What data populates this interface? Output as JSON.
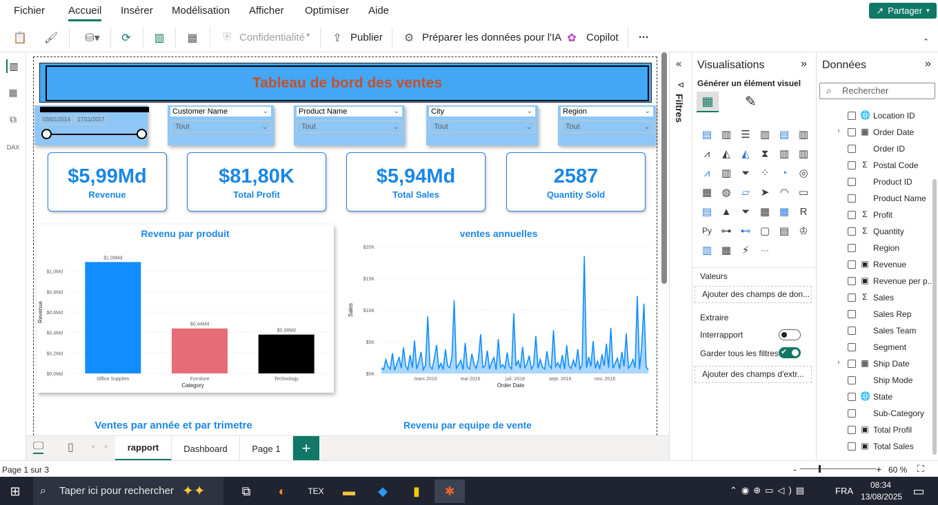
{
  "menu": {
    "items": [
      "Fichier",
      "Accueil",
      "Insérer",
      "Modélisation",
      "Afficher",
      "Optimiser",
      "Aide"
    ],
    "active": "Accueil",
    "share_label": "Partager"
  },
  "ribbon": {
    "confidentiality": "Confidentialité",
    "publish": "Publier",
    "prepare_ai": "Préparer les données pour l'IA",
    "copilot": "Copilot",
    "more": "···"
  },
  "report": {
    "title": "Tableau de bord des ventes",
    "date_slicer": {
      "start": "03/01/2014",
      "end": "17/11/2017"
    },
    "slicers": [
      {
        "header": "Customer Name",
        "value": "Tout"
      },
      {
        "header": "Product Name",
        "value": "Tout"
      },
      {
        "header": "City",
        "value": "Tout"
      },
      {
        "header": "Region",
        "value": "Tout"
      }
    ],
    "kpis": [
      {
        "value": "$5,99Md",
        "label": "Revenue"
      },
      {
        "value": "$81,80K",
        "label": "Total Profit"
      },
      {
        "value": "$5,94Md",
        "label": "Total Sales"
      },
      {
        "value": "2587",
        "label": "Quantity Sold"
      }
    ],
    "bottom_titles": [
      "Ventes par année et par trimetre",
      "Revenu par equipe de vente"
    ]
  },
  "chart_data": [
    {
      "type": "bar",
      "title": "Revenu par produit",
      "xlabel": "Category",
      "ylabel": "Revenue",
      "categories": [
        "Office Supplies",
        "Furniture",
        "Technology"
      ],
      "values": [
        1.09,
        0.44,
        0.38
      ],
      "data_labels": [
        "$1,09Md",
        "$0,44Md",
        "$0,38Md"
      ],
      "bar_colors": [
        "#118dff",
        "#e66c77",
        "#000000"
      ],
      "y_ticks": [
        "$0,0Md",
        "$0,2Md",
        "$0,4Md",
        "$0,6Md",
        "$0,8Md",
        "$1,0Md"
      ],
      "ylim": [
        0,
        1.2
      ],
      "grid": true
    },
    {
      "type": "area",
      "title": "ventes annuelles",
      "xlabel": "Order Date",
      "ylabel": "Sales",
      "x_ticks": [
        "mars 2016",
        "mai 2016",
        "juil. 2016",
        "sept. 2016",
        "nov. 2016"
      ],
      "y_ticks": [
        "$0K",
        "$5K",
        "$10K",
        "$15K",
        "$20K"
      ],
      "ylim": [
        0,
        20000
      ],
      "color": "#118dff",
      "values": [
        900,
        600,
        2200,
        1100,
        700,
        3200,
        500,
        1500,
        2600,
        800,
        4100,
        1200,
        600,
        2900,
        900,
        5200,
        700,
        1800,
        3400,
        600,
        1300,
        9000,
        1100,
        700,
        2400,
        4500,
        800,
        1600,
        600,
        3800,
        1200,
        900,
        2700,
        11500,
        800,
        1400,
        2100,
        600,
        4800,
        1000,
        700,
        3100,
        1500,
        800,
        2300,
        6200,
        900,
        1200,
        3600,
        700,
        1800,
        2500,
        600,
        5400,
        1000,
        1400,
        800,
        3300,
        1100,
        700,
        9500,
        1200,
        2000,
        800,
        4200,
        900,
        1500,
        2800,
        700,
        1300,
        5900,
        800,
        2200,
        1000,
        700,
        3500,
        1300,
        800,
        6800,
        1100,
        1700,
        900,
        2900,
        700,
        4400,
        1200,
        800,
        2100,
        1000,
        3800,
        700,
        1400,
        18500,
        900,
        2600,
        1100,
        5100,
        800,
        1900,
        700,
        3000,
        1200,
        4700,
        900,
        7200,
        800,
        1600,
        2400,
        700,
        3400,
        1100,
        6300,
        800,
        1300,
        2200,
        900,
        12200,
        700,
        4100,
        11000,
        1000,
        600
      ]
    }
  ],
  "tabs": {
    "items": [
      "rapport",
      "Dashboard",
      "Page 1"
    ],
    "active": "rapport"
  },
  "filters_label": "Filtres",
  "viz_pane": {
    "title": "Visualisations",
    "subtitle": "Générer un élément visuel",
    "values_label": "Valeurs",
    "values_well": "Ajouter des champs de don...",
    "drill_label": "Extraire",
    "cross_report": "Interrapport",
    "keep_filters": "Garder tous les filtres",
    "drill_well": "Ajouter des champs d'extr..."
  },
  "data_pane": {
    "title": "Données",
    "search_placeholder": "Rechercher",
    "fields": [
      {
        "name": "Location ID",
        "type": "globe-icon",
        "glyph": "🌐",
        "expand": false
      },
      {
        "name": "Order Date",
        "type": "table-icon",
        "glyph": "▦",
        "expand": true
      },
      {
        "name": "Order ID",
        "type": "none",
        "glyph": "",
        "expand": false
      },
      {
        "name": "Postal Code",
        "type": "sigma-icon",
        "glyph": "Σ",
        "expand": false
      },
      {
        "name": "Product ID",
        "type": "none",
        "glyph": "",
        "expand": false
      },
      {
        "name": "Product Name",
        "type": "none",
        "glyph": "",
        "expand": false
      },
      {
        "name": "Profit",
        "type": "sigma-icon",
        "glyph": "Σ",
        "expand": false
      },
      {
        "name": "Quantity",
        "type": "sigma-icon",
        "glyph": "Σ",
        "expand": false
      },
      {
        "name": "Region",
        "type": "none",
        "glyph": "",
        "expand": false
      },
      {
        "name": "Revenue",
        "type": "measure-icon",
        "glyph": "▣",
        "expand": false
      },
      {
        "name": "Revenue per p...",
        "type": "measure-icon",
        "glyph": "▣",
        "expand": false
      },
      {
        "name": "Sales",
        "type": "sigma-icon",
        "glyph": "Σ",
        "expand": false
      },
      {
        "name": "Sales Rep",
        "type": "none",
        "glyph": "",
        "expand": false
      },
      {
        "name": "Sales Team",
        "type": "none",
        "glyph": "",
        "expand": false
      },
      {
        "name": "Segment",
        "type": "none",
        "glyph": "",
        "expand": false
      },
      {
        "name": "Ship Date",
        "type": "table-icon",
        "glyph": "▦",
        "expand": true
      },
      {
        "name": "Ship Mode",
        "type": "none",
        "glyph": "",
        "expand": false
      },
      {
        "name": "State",
        "type": "globe-icon",
        "glyph": "🌐",
        "expand": false
      },
      {
        "name": "Sub-Category",
        "type": "none",
        "glyph": "",
        "expand": false
      },
      {
        "name": "Total Profil",
        "type": "measure-icon",
        "glyph": "▣",
        "expand": false
      },
      {
        "name": "Total Sales",
        "type": "measure-icon",
        "glyph": "▣",
        "expand": false
      }
    ]
  },
  "status": {
    "page": "Page 1 sur 3",
    "zoom": "60 %"
  },
  "taskbar": {
    "search_placeholder": "Taper ici pour rechercher",
    "lang": "FRA",
    "time": "08:34",
    "date": "13/08/2025"
  }
}
